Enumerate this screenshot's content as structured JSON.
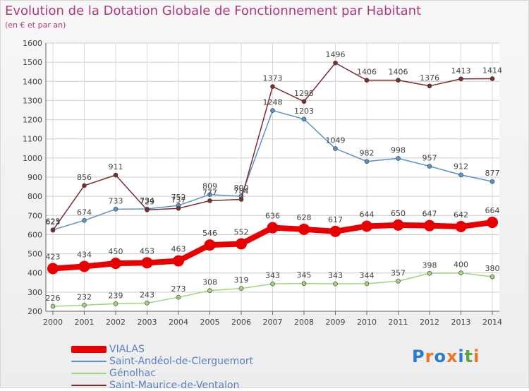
{
  "title": "Evolution de la Dotation Globale de Fonctionnement par Habitant",
  "subtitle": "(en € et par an)",
  "logo": {
    "text": "Proxiti",
    "letter_colors": [
      "#2b7ad0",
      "#e8742a",
      "#2b7ad0",
      "#e8742a",
      "#2b7ad0",
      "#57a83e",
      "#e8742a"
    ]
  },
  "chart_data": {
    "type": "line",
    "title": "Evolution de la Dotation Globale de Fonctionnement par Habitant",
    "subtitle": "(en € et par an)",
    "x": [
      "2000",
      "2001",
      "2002",
      "2003",
      "2004",
      "2005",
      "2006",
      "2007",
      "2008",
      "2009",
      "2010",
      "2011",
      "2012",
      "2013",
      "2014"
    ],
    "ylim": [
      200,
      1600
    ],
    "yticks": [
      200,
      300,
      400,
      500,
      600,
      700,
      800,
      900,
      1000,
      1100,
      1200,
      1300,
      1400,
      1500,
      1600
    ],
    "grid": true,
    "legend_position": "bottom-left",
    "series": [
      {
        "name": "VIALAS",
        "color": "#e80000",
        "values": [
          423,
          434,
          450,
          453,
          463,
          546,
          552,
          636,
          628,
          617,
          644,
          650,
          647,
          642,
          664
        ]
      },
      {
        "name": "Saint-Andéol-de-Clerguemort",
        "color": "#5b93c8",
        "values": [
          625,
          674,
          733,
          734,
          752,
          809,
          800,
          1248,
          1203,
          1049,
          982,
          998,
          957,
          912,
          877
        ]
      },
      {
        "name": "Génolhac",
        "color": "#9fd47a",
        "values": [
          226,
          232,
          239,
          243,
          273,
          308,
          319,
          343,
          345,
          343,
          344,
          357,
          398,
          400,
          380
        ]
      },
      {
        "name": "Saint-Maurice-de-Ventalon",
        "color": "#7a2e2e",
        "values": [
          623,
          856,
          911,
          729,
          737,
          777,
          784,
          1373,
          1295,
          1496,
          1406,
          1406,
          1376,
          1413,
          1414
        ]
      }
    ]
  }
}
